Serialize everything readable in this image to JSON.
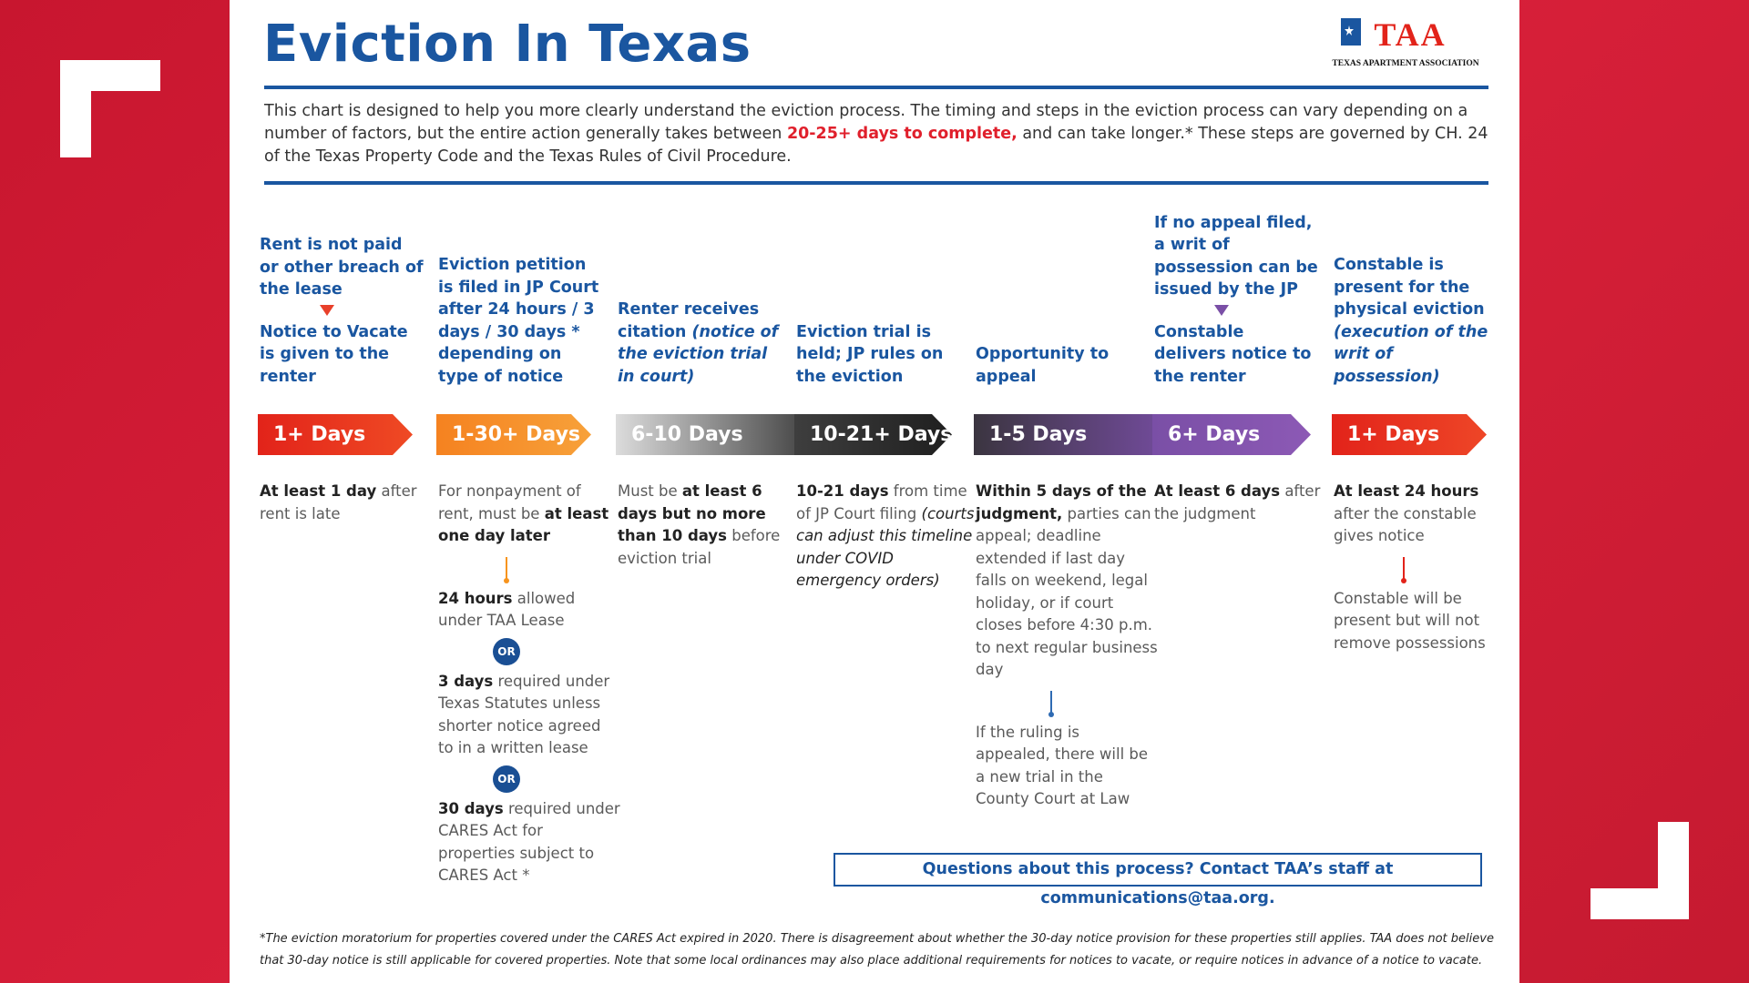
{
  "header": {
    "title": "Eviction In Texas",
    "logo_mark": "TAA",
    "logo_text": "TEXAS APARTMENT ASSOCIATION"
  },
  "intro": {
    "before": "This chart is designed to help you more clearly understand the eviction process. The timing and steps in the eviction process can vary depending on a number of factors, but the entire action generally takes between ",
    "highlight": "20-25+ days to complete,",
    "after": " and can take longer.* These steps are governed by CH. 24 of the Texas Property Code and the Texas Rules of Civil Procedure."
  },
  "steps": [
    {
      "heading": [
        [
          {
            "text": "Rent is not paid or other breach of the lease"
          }
        ]
      ],
      "heading_after": [
        [
          {
            "text": "Notice to Vacate is given to the renter"
          }
        ]
      ],
      "arrow": "1+ Days",
      "details": [
        [
          {
            "bold": "At least 1 day"
          },
          {
            "text": " after rent is late"
          }
        ]
      ]
    },
    {
      "heading": [
        [
          {
            "text": "Eviction petition is filed in JP Court after 24 hours / 3 days / 30 days * depending on type of notice"
          }
        ]
      ],
      "arrow": "1-30+ Days",
      "details": [
        [
          {
            "text": "For nonpayment of rent, must be "
          },
          {
            "bold": "at least one day later"
          }
        ]
      ],
      "followup": [
        [
          {
            "bold": "24 hours"
          },
          {
            "text": " allowed under TAA Lease"
          }
        ],
        {
          "or": "OR"
        },
        [
          {
            "bold": "3 days"
          },
          {
            "text": " required under Texas Statutes unless shorter notice agreed to in a written lease"
          }
        ],
        {
          "or": "OR"
        },
        [
          {
            "bold": "30 days"
          },
          {
            "text": " required under CARES Act for properties subject to CARES Act *"
          }
        ]
      ]
    },
    {
      "heading": [
        [
          {
            "text": "Renter receives citation "
          },
          {
            "italic": "(notice of the eviction trial in court)"
          }
        ]
      ],
      "arrow": "6-10 Days",
      "details": [
        [
          {
            "text": "Must be "
          },
          {
            "bold": "at least 6 days but no more than 10 days"
          },
          {
            "text": " before eviction trial"
          }
        ]
      ]
    },
    {
      "heading": [
        [
          {
            "text": "Eviction trial is held; JP rules on the eviction"
          }
        ]
      ],
      "arrow": "10-21+ Days",
      "details": [
        [
          {
            "bold": "10-21 days"
          },
          {
            "text": " from time of JP Court filing "
          },
          {
            "italic": "(courts can adjust this timeline under COVID emergency orders)"
          }
        ]
      ]
    },
    {
      "heading": [
        [
          {
            "text": "Opportunity to appeal"
          }
        ]
      ],
      "arrow": "1-5 Days",
      "details": [
        [
          {
            "bold": "Within 5 days of the judgment,"
          },
          {
            "text": " parties can appeal; deadline extended if last day falls on weekend, legal holiday, or if court closes before 4:30 p.m. to next regular business day"
          }
        ]
      ],
      "followup": [
        [
          {
            "text": "If the ruling is appealed, there will be a new trial in the County Court at Law"
          }
        ]
      ]
    },
    {
      "heading": [
        [
          {
            "text": "If no appeal filed, a writ of possession can be issued by the JP"
          }
        ]
      ],
      "heading_after": [
        [
          {
            "text": "Constable delivers notice to the renter"
          }
        ]
      ],
      "arrow": "6+ Days",
      "details": [
        [
          {
            "bold": "At least 6 days"
          },
          {
            "text": " after the judgment"
          }
        ]
      ]
    },
    {
      "heading": [
        [
          {
            "text": "Constable is present for the physical eviction "
          },
          {
            "italic": "(execution of the writ of possession)"
          }
        ]
      ],
      "arrow": "1+ Days",
      "details": [
        [
          {
            "bold": "At least 24 hours"
          },
          {
            "text": " after the constable gives notice"
          }
        ]
      ],
      "followup": [
        [
          {
            "text": "Constable will be present but will not remove possessions"
          }
        ]
      ]
    }
  ],
  "contact": "Questions about this process? Contact TAA’s staff at communications@taa.org.",
  "footnote": "*The eviction moratorium for properties covered under the CARES Act expired in 2020. There is disagreement about whether the 30-day notice provision for these properties still applies. TAA does not believe that 30-day notice is still applicable for covered properties. Note that some local ordinances may also place additional requirements for notices to vacate, or require notices in advance of a notice to vacate."
}
